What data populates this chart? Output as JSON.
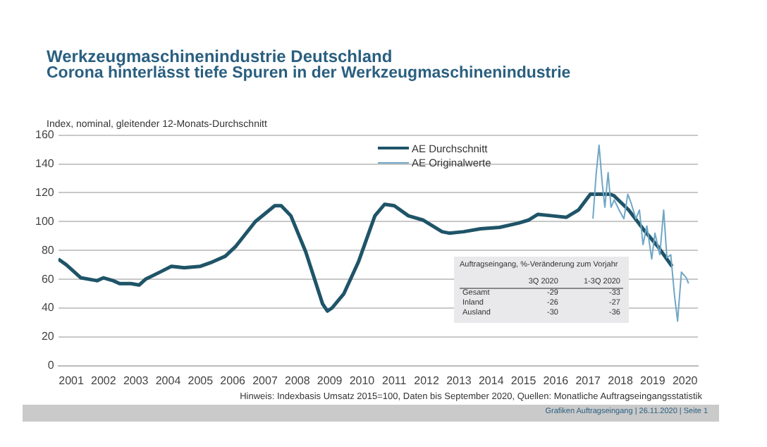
{
  "chart_data": {
    "type": "line",
    "title": "Werkzeugmaschinenindustrie Deutschland",
    "subtitle": "Corona hinterlässt tiefe Spuren in der Werkzeugmaschinenindustrie",
    "ylabel": "Index, nominal, gleitender 12-Monats-Durchschnitt",
    "xlim": [
      2001.1,
      2020.9
    ],
    "xticks": [
      {
        "value": 2001.5,
        "label": "2001"
      },
      {
        "value": 2002.5,
        "label": "2002"
      },
      {
        "value": 2003.5,
        "label": "2003"
      },
      {
        "value": 2004.5,
        "label": "2004"
      },
      {
        "value": 2005.5,
        "label": "2005"
      },
      {
        "value": 2006.5,
        "label": "2006"
      },
      {
        "value": 2007.5,
        "label": "2007"
      },
      {
        "value": 2008.5,
        "label": "2008"
      },
      {
        "value": 2009.5,
        "label": "2009"
      },
      {
        "value": 2010.5,
        "label": "2010"
      },
      {
        "value": 2011.5,
        "label": "2011"
      },
      {
        "value": 2012.5,
        "label": "2012"
      },
      {
        "value": 2013.5,
        "label": "2013"
      },
      {
        "value": 2014.5,
        "label": "2014"
      },
      {
        "value": 2015.5,
        "label": "2015"
      },
      {
        "value": 2016.5,
        "label": "2016"
      },
      {
        "value": 2017.5,
        "label": "2017"
      },
      {
        "value": 2018.5,
        "label": "2018"
      },
      {
        "value": 2019.5,
        "label": "2019"
      },
      {
        "value": 2020.5,
        "label": "2020"
      }
    ],
    "ylim": [
      0,
      160
    ],
    "yticks": [
      0,
      20,
      40,
      60,
      80,
      100,
      120,
      140,
      160
    ],
    "grid": "y",
    "legend": "top",
    "marker": "none",
    "series": [
      {
        "name": "AE Durchschnitt",
        "color": "#1f5468",
        "x": [
          2001.1,
          2001.35,
          2001.8,
          2002.3,
          2002.5,
          2002.8,
          2003.0,
          2003.35,
          2003.6,
          2003.8,
          2004.25,
          2004.6,
          2005.0,
          2005.5,
          2005.87,
          2006.27,
          2006.6,
          2007.2,
          2007.8,
          2008.0,
          2008.3,
          2008.76,
          2009.28,
          2009.43,
          2009.57,
          2009.94,
          2010.39,
          2010.9,
          2011.2,
          2011.5,
          2011.94,
          2012.4,
          2012.98,
          2013.2,
          2013.65,
          2014.17,
          2014.76,
          2015.35,
          2015.65,
          2015.94,
          2016.4,
          2016.83,
          2017.2,
          2017.57,
          2017.87,
          2018.17,
          2018.3,
          2018.76,
          2019.2,
          2019.65,
          2020.1
        ],
        "values": [
          74,
          70,
          61,
          59,
          61,
          59,
          57,
          57,
          56,
          60,
          65,
          69,
          68,
          69,
          72,
          76,
          83,
          100,
          111,
          111,
          104,
          79,
          43,
          38,
          40,
          50,
          72,
          104,
          112,
          111,
          104,
          101,
          93,
          92,
          93,
          95,
          96,
          99,
          101,
          105,
          104,
          103,
          108,
          119,
          119,
          119,
          118,
          108,
          95,
          83,
          69
        ]
      },
      {
        "name": "AE Originalwerte",
        "color": "#6fa6c6",
        "x": [
          2017.65,
          2017.75,
          2017.84,
          2017.94,
          2018.02,
          2018.12,
          2018.21,
          2018.31,
          2018.46,
          2018.61,
          2018.73,
          2018.83,
          2018.98,
          2019.09,
          2019.2,
          2019.32,
          2019.47,
          2019.57,
          2019.72,
          2019.84,
          2019.94,
          2020.06,
          2020.17,
          2020.27,
          2020.39,
          2020.54,
          2020.61
        ],
        "values": [
          102,
          133,
          153,
          126,
          110,
          134,
          110,
          115,
          108,
          102,
          119,
          113,
          102,
          108,
          84,
          97,
          74,
          92,
          77,
          108,
          75,
          77,
          50,
          31,
          65,
          61,
          57
        ]
      }
    ],
    "annotations": [
      "Auftragseingang, %-Veränderung zum Vorjahr",
      "\t3Q 2020\t1-3Q 2020",
      "Gesamt\t-29\t-33",
      "Inland\t-26\t-27",
      "Ausland\t-30\t-36",
      "Hinweis: Indexbasis Umsatz 2015=100, Daten bis September 2020, Quellen: Monatliche Auftragseingangsstatistik",
      "Grafiken Auftragseingang | 26.11.2020 | Seite 1"
    ]
  }
}
